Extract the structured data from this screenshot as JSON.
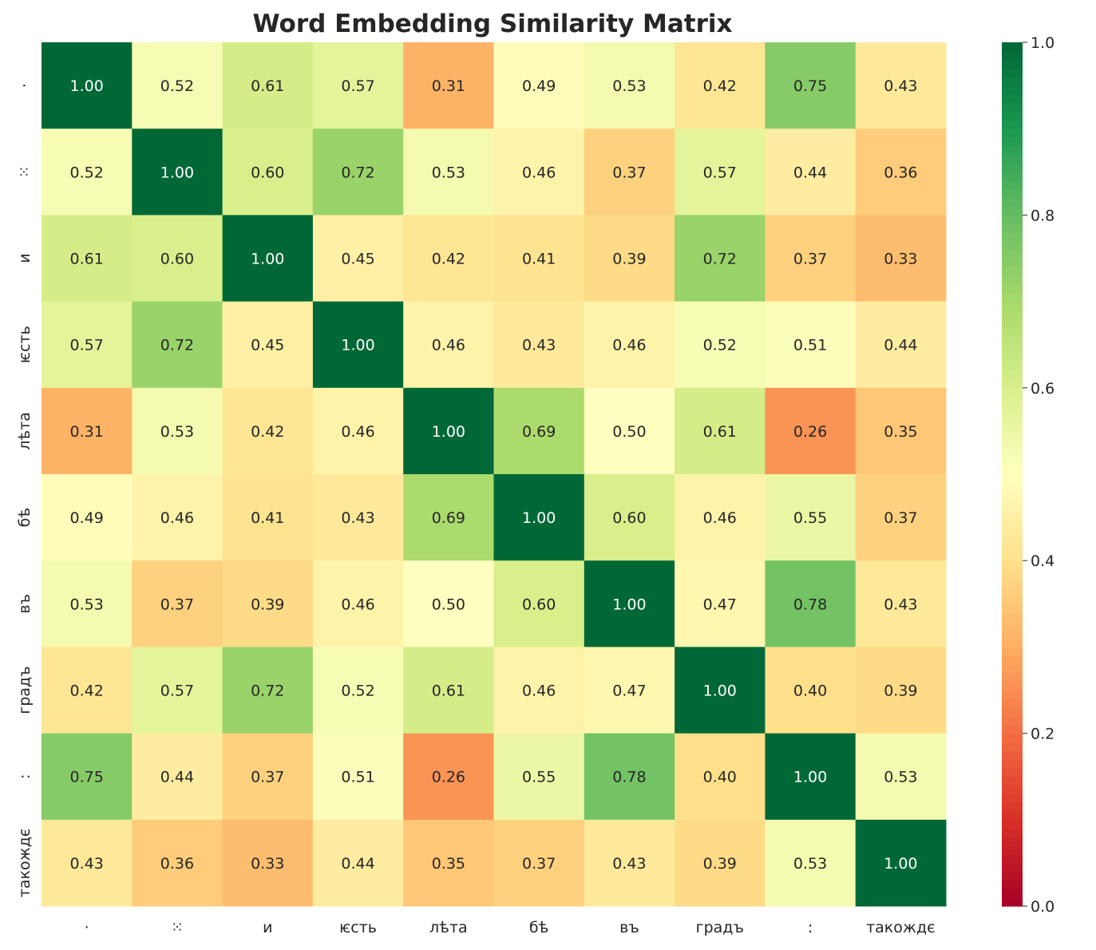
{
  "chart_data": {
    "type": "heatmap",
    "title": "Word Embedding Similarity Matrix",
    "labels": [
      "·",
      "⁙",
      "и",
      "ѥсть",
      "лѣта",
      "бѣ",
      "въ",
      "градъ",
      ":",
      "такождє"
    ],
    "values": [
      [
        1.0,
        0.52,
        0.61,
        0.57,
        0.31,
        0.49,
        0.53,
        0.42,
        0.75,
        0.43
      ],
      [
        0.52,
        1.0,
        0.6,
        0.72,
        0.53,
        0.46,
        0.37,
        0.57,
        0.44,
        0.36
      ],
      [
        0.61,
        0.6,
        1.0,
        0.45,
        0.42,
        0.41,
        0.39,
        0.72,
        0.37,
        0.33
      ],
      [
        0.57,
        0.72,
        0.45,
        1.0,
        0.46,
        0.43,
        0.46,
        0.52,
        0.51,
        0.44
      ],
      [
        0.31,
        0.53,
        0.42,
        0.46,
        1.0,
        0.69,
        0.5,
        0.61,
        0.26,
        0.35
      ],
      [
        0.49,
        0.46,
        0.41,
        0.43,
        0.69,
        1.0,
        0.6,
        0.46,
        0.55,
        0.37
      ],
      [
        0.53,
        0.37,
        0.39,
        0.46,
        0.5,
        0.6,
        1.0,
        0.47,
        0.78,
        0.43
      ],
      [
        0.42,
        0.57,
        0.72,
        0.52,
        0.61,
        0.46,
        0.47,
        1.0,
        0.4,
        0.39
      ],
      [
        0.75,
        0.44,
        0.37,
        0.51,
        0.26,
        0.55,
        0.78,
        0.4,
        1.0,
        0.53
      ],
      [
        0.43,
        0.36,
        0.33,
        0.44,
        0.35,
        0.37,
        0.43,
        0.39,
        0.53,
        1.0
      ]
    ],
    "colormap": "RdYlGn",
    "vmin": 0,
    "vmax": 1,
    "colorbar_ticks": [
      "0.0",
      "0.2",
      "0.4",
      "0.6",
      "0.8",
      "1.0"
    ],
    "value_format": "2 decimals"
  }
}
